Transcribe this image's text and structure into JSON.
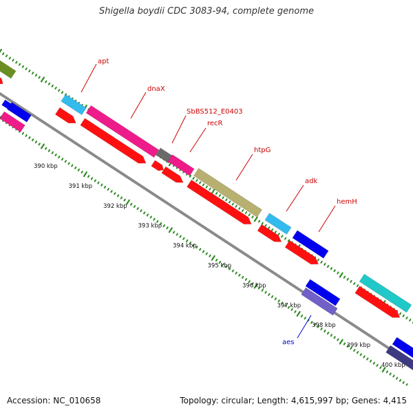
{
  "title": "Shigella boydii CDC 3083-94, complete genome",
  "footer": {
    "accession": "Accession: NC_010658",
    "summary": "Topology: circular; Length: 4,615,997 bp; Genes: 4,415"
  },
  "colors": {
    "backbone": "#8a8a8a",
    "tick": "#2e8b22",
    "tick_label": "#111111",
    "gene_label": "#cc0000",
    "aes_label": "#0000cc"
  },
  "scale": {
    "tick_labels": [
      {
        "label": "390 kbp",
        "kbp": 390
      },
      {
        "label": "391 kbp",
        "kbp": 391
      },
      {
        "label": "392 kbp",
        "kbp": 392
      },
      {
        "label": "393 kbp",
        "kbp": 393
      },
      {
        "label": "394 kbp",
        "kbp": 394
      },
      {
        "label": "395 kbp",
        "kbp": 395
      },
      {
        "label": "396 kbp",
        "kbp": 396
      },
      {
        "label": "397 kbp",
        "kbp": 397
      },
      {
        "label": "398 kbp",
        "kbp": 398
      },
      {
        "label": "399 kbp",
        "kbp": 399
      },
      {
        "label": "400 kbp",
        "kbp": 400
      }
    ]
  },
  "gene_labels": [
    {
      "name": "apt",
      "color": "#cc0000"
    },
    {
      "name": "dnaX",
      "color": "#cc0000"
    },
    {
      "name": "SbBS512_E0403",
      "color": "#cc0000"
    },
    {
      "name": "recR",
      "color": "#cc0000"
    },
    {
      "name": "htpG",
      "color": "#cc0000"
    },
    {
      "name": "adk",
      "color": "#cc0000"
    },
    {
      "name": "hemH",
      "color": "#cc0000"
    },
    {
      "name": "aes",
      "color": "#0000cc"
    }
  ]
}
